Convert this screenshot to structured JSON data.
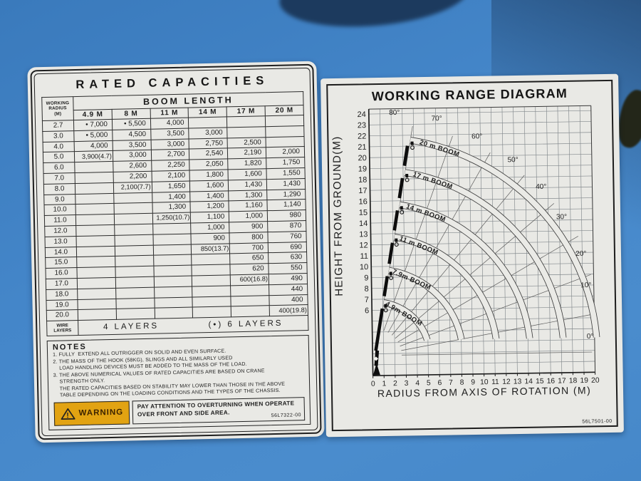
{
  "colors": {
    "background_blue": "#4486c9",
    "paper": "#e9e9e5",
    "ink": "#1d1d1d",
    "warning_orange": "#e2a312",
    "machine_shadow_navy": "#1c3a5e"
  },
  "capacities_label": {
    "title": "RATED CAPACITIES",
    "table": {
      "corner_header": "WORKING\nRADIUS\n(M)",
      "boom_length_header": "BOOM LENGTH",
      "wire_layers": {
        "label": "WIRE\nLAYERS",
        "four": "4 LAYERS",
        "six": "(•) 6 LAYERS"
      }
    },
    "notes": {
      "title": "NOTES",
      "lines": [
        "1. FULLY  EXTEND ALL OUTRIGGER ON SOLID AND EVEN SURFACE.",
        "2. THE MASS OF THE HOOK (58KG), SLINGS AND ALL SIMILARLY USED",
        "    LOAD HANDLING DEVICES MUST BE ADDED TO THE MASS OF THE LOAD.",
        "3. THE ABOVE NUMERICAL VALUES OF RATED CAPACITIES ARE BASED ON CRANE",
        "    STRENGTH ONLY.",
        "    THE RATED CAPACITIES BASED ON STABILITY MAY LOWER THAN THOSE IN THE ABOVE",
        "    TABLE DEPENDING ON THE LOADING CONDITIONS AND THE TYPES OF THE CHASSIS."
      ]
    },
    "warning": {
      "label": "WARNING",
      "line1": "PAY ATTENTION TO OVERTURNING WHEN OPERATE",
      "line2": "OVER FRONT AND SIDE AREA.",
      "part_number": "56L7322-00"
    }
  },
  "range_label": {
    "title": "WORKING RANGE DIAGRAM",
    "part_number": "56L7501-00"
  },
  "chart_data": [
    {
      "type": "table",
      "title": "RATED CAPACITIES",
      "columns": [
        "WORKING RADIUS (M)",
        "4.9 M",
        "8 M",
        "11 M",
        "14 M",
        "17 M",
        "20 M"
      ],
      "rows": [
        [
          "2.7",
          "• 7,000",
          "• 5,500",
          "4,000",
          "",
          "",
          ""
        ],
        [
          "3.0",
          "• 5,000",
          "4,500",
          "3,500",
          "3,000",
          "",
          ""
        ],
        [
          "4.0",
          "4,000",
          "3,500",
          "3,000",
          "2,750",
          "2,500",
          ""
        ],
        [
          "5.0",
          "3,900(4.7)",
          "3,000",
          "2,700",
          "2,540",
          "2,190",
          "2,000"
        ],
        [
          "6.0",
          "",
          "2,600",
          "2,250",
          "2,050",
          "1,820",
          "1,750"
        ],
        [
          "7.0",
          "",
          "2,200",
          "2,100",
          "1,800",
          "1,600",
          "1,550"
        ],
        [
          "8.0",
          "",
          "2,100(7.7)",
          "1,650",
          "1,600",
          "1,430",
          "1,430"
        ],
        [
          "9.0",
          "",
          "",
          "1,400",
          "1,400",
          "1,300",
          "1,290"
        ],
        [
          "10.0",
          "",
          "",
          "1,300",
          "1,200",
          "1,160",
          "1,140"
        ],
        [
          "11.0",
          "",
          "",
          "1,250(10.7)",
          "1,100",
          "1,000",
          "980"
        ],
        [
          "12.0",
          "",
          "",
          "",
          "1,000",
          "900",
          "870"
        ],
        [
          "13.0",
          "",
          "",
          "",
          "900",
          "800",
          "760"
        ],
        [
          "14.0",
          "",
          "",
          "",
          "850(13.7)",
          "700",
          "690"
        ],
        [
          "15.0",
          "",
          "",
          "",
          "",
          "650",
          "630"
        ],
        [
          "16.0",
          "",
          "",
          "",
          "",
          "620",
          "550"
        ],
        [
          "17.0",
          "",
          "",
          "",
          "",
          "600(16.8)",
          "490"
        ],
        [
          "18.0",
          "",
          "",
          "",
          "",
          "",
          "440"
        ],
        [
          "19.0",
          "",
          "",
          "",
          "",
          "",
          "400"
        ],
        [
          "20.0",
          "",
          "",
          "",
          "",
          "",
          "400(19.8)"
        ]
      ],
      "footer": [
        "WIRE LAYERS",
        "4 LAYERS",
        "(•) 6 LAYERS"
      ]
    },
    {
      "type": "line",
      "title": "WORKING RANGE DIAGRAM",
      "xlabel": "RADIUS FROM AXIS OF ROTATION (M)",
      "ylabel": "HEIGHT FROM GROUND(M)",
      "xlim": [
        0,
        20
      ],
      "ylim": [
        0,
        24.5
      ],
      "grid": true,
      "x_ticks": [
        0,
        1,
        2,
        3,
        4,
        5,
        6,
        7,
        8,
        9,
        10,
        11,
        12,
        13,
        14,
        15,
        16,
        17,
        18,
        19,
        20
      ],
      "y_ticks": [
        6,
        7,
        8,
        9,
        10,
        11,
        12,
        13,
        14,
        15,
        16,
        17,
        18,
        19,
        20,
        21,
        22,
        23,
        24
      ],
      "pivot": {
        "u": 0.22,
        "v": 1.85
      },
      "series": [
        {
          "name": "4.9m BOOM",
          "radius_m": 4.9
        },
        {
          "name": "7.9m BOOM",
          "radius_m": 7.9
        },
        {
          "name": "11 m BOOM",
          "radius_m": 11
        },
        {
          "name": "14 m BOOM",
          "radius_m": 14
        },
        {
          "name": "17 m BOOM",
          "radius_m": 17
        },
        {
          "name": "20 m BOOM",
          "radius_m": 20
        }
      ],
      "angle_lines_deg": [
        0,
        10,
        20,
        30,
        40,
        50,
        60,
        70,
        80
      ],
      "angle_labels": [
        {
          "text": "80°",
          "u": 2.3,
          "v": 23.9
        },
        {
          "text": "70°",
          "u": 6.1,
          "v": 23.3
        },
        {
          "text": "60°",
          "u": 9.7,
          "v": 21.6
        },
        {
          "text": "50°",
          "u": 12.9,
          "v": 19.4
        },
        {
          "text": "40°",
          "u": 15.4,
          "v": 16.9
        },
        {
          "text": "30°",
          "u": 17.2,
          "v": 14.1
        },
        {
          "text": "20°",
          "u": 18.9,
          "v": 10.7
        },
        {
          "text": "10°",
          "u": 19.3,
          "v": 7.8
        },
        {
          "text": "0°",
          "u": 19.6,
          "v": 3.1
        }
      ]
    }
  ]
}
